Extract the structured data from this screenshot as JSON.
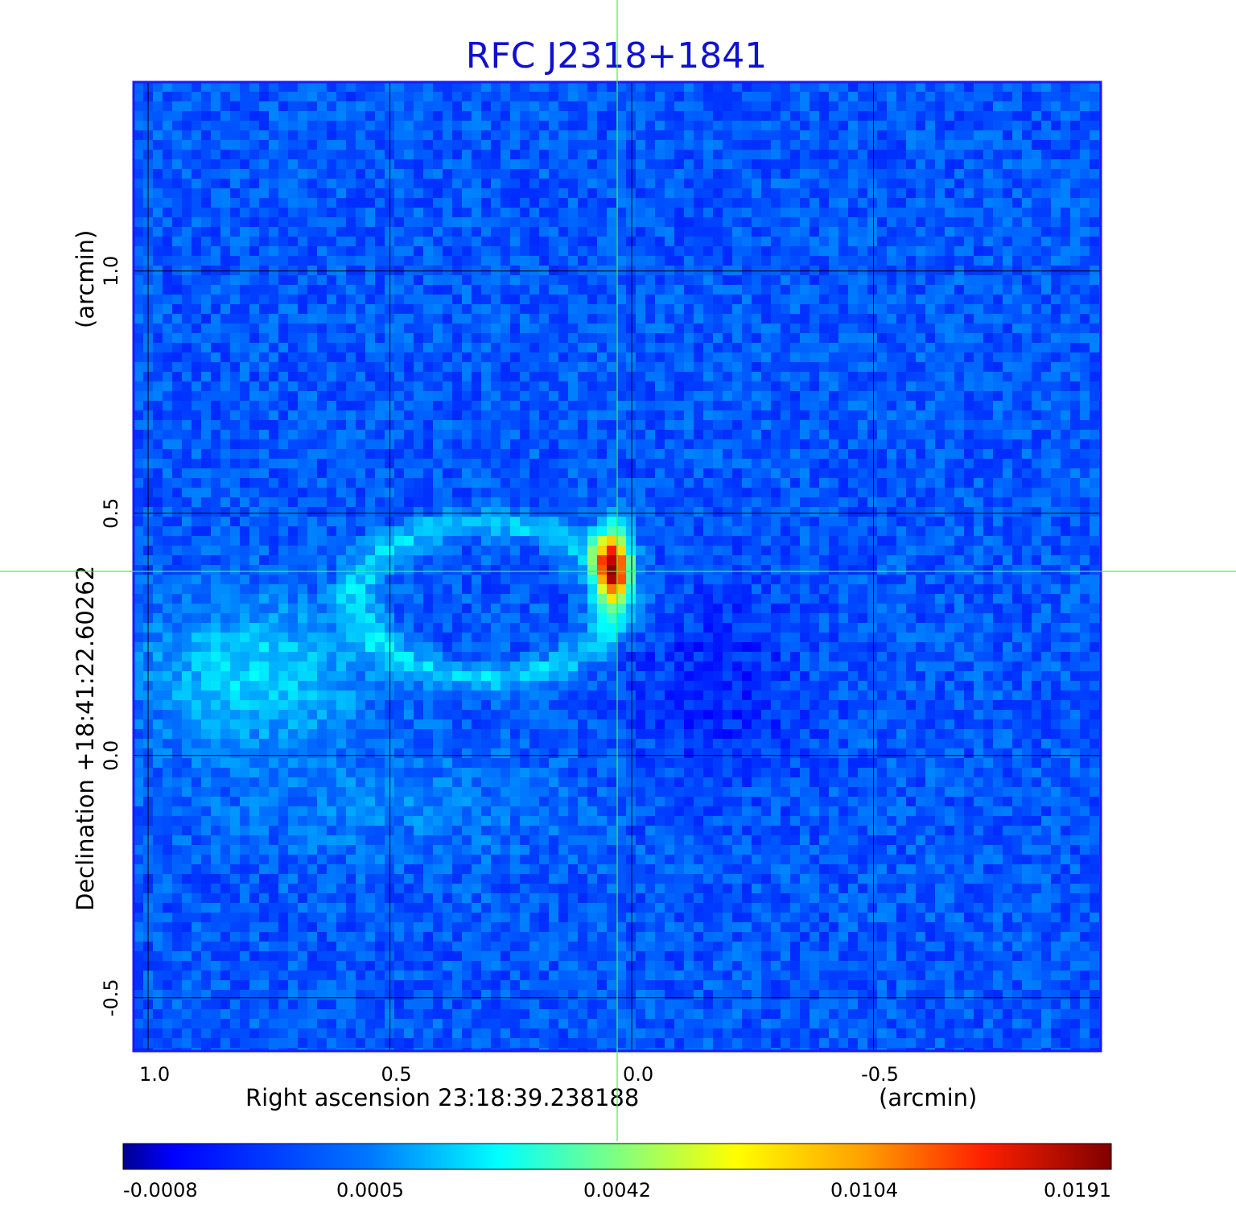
{
  "chart_data": {
    "type": "heatmap",
    "title": "RFC J2318+1841",
    "xlabel": "Right ascension  23:18:39.238188",
    "xunit": "(arcmin)",
    "ylabel": "Declination  +18:41:22.60262",
    "yunit": "(arcmin)",
    "x_ticks": [
      {
        "value": 1.0,
        "label": "1.0"
      },
      {
        "value": 0.5,
        "label": "0.5"
      },
      {
        "value": 0.0,
        "label": "0.0"
      },
      {
        "value": -0.5,
        "label": "-0.5"
      }
    ],
    "y_ticks": [
      {
        "value": 1.0,
        "label": "1.0"
      },
      {
        "value": 0.5,
        "label": "0.5"
      },
      {
        "value": 0.0,
        "label": "0.0"
      },
      {
        "value": -0.5,
        "label": "-0.5"
      }
    ],
    "xlim": [
      1.03,
      -0.97
    ],
    "ylim": [
      -0.61,
      1.39
    ],
    "grid": true,
    "x_reversed": true,
    "colormap": "jet",
    "colorbar": {
      "ticks": [
        "-0.0008",
        "0.0005",
        "0.0042",
        "0.0104",
        "0.0191"
      ],
      "min": -0.0008,
      "max": 0.0191
    },
    "crosshair": {
      "x": 0.03,
      "y": 0.38,
      "color": "#33ff33"
    },
    "features": {
      "peak": {
        "x": 0.04,
        "y": 0.39,
        "value": 0.0191
      },
      "ring_center": {
        "x": 0.3,
        "y": 0.32
      }
    }
  },
  "colors": {
    "title": "#1010d0",
    "frame": "#1a1aff",
    "grid": "#000000",
    "crosshair": "#33ff33"
  }
}
